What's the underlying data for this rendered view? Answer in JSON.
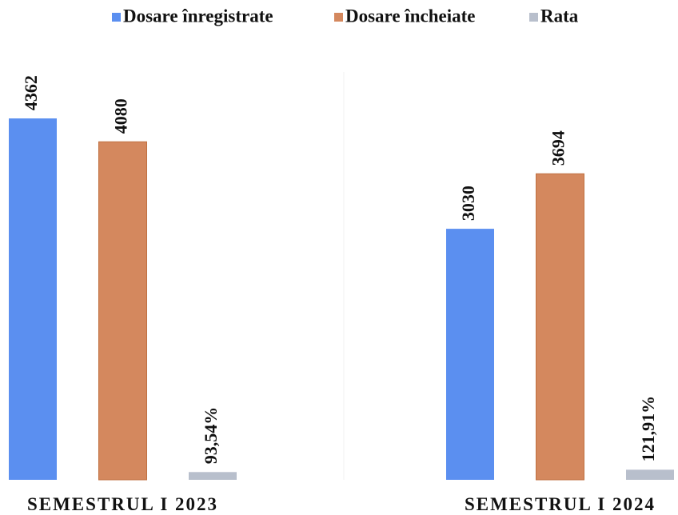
{
  "chart_data": {
    "type": "bar",
    "categories": [
      "SEMESTRUL I 2023",
      "SEMESTRUL I 2024"
    ],
    "series": [
      {
        "name": "Dosare înregistrate",
        "color": "#5b8ff0",
        "values": [
          4362,
          3030
        ]
      },
      {
        "name": "Dosare încheiate",
        "color": "#d4885e",
        "values": [
          4080,
          3694
        ]
      },
      {
        "name": "Rata",
        "color": "#b8bfcc",
        "values": [
          93.54,
          121.91
        ],
        "value_labels": [
          "93,54%",
          "121,91%"
        ]
      }
    ],
    "ylim": [
      0,
      5000
    ],
    "legend": "top"
  }
}
